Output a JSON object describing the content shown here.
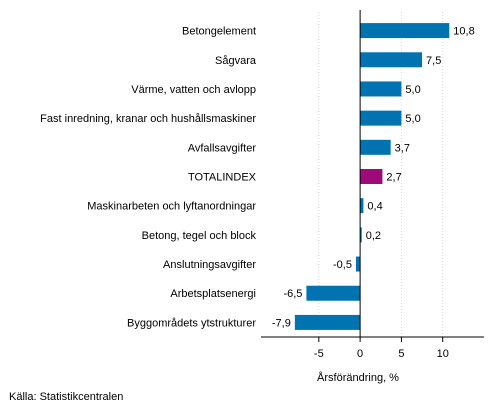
{
  "chart_data": {
    "type": "bar",
    "orientation": "horizontal",
    "categories": [
      "Betongelement",
      "Sågvara",
      "Värme, vatten och avlopp",
      "Fast inredning, kranar och hushållsmaskiner",
      "Avfallsavgifter",
      "TOTALINDEX",
      "Maskinarbeten och lyftanordningar",
      "Betong, tegel och block",
      "Anslutningsavgifter",
      "Arbetsplatsenergi",
      "Byggområdets ytstrukturer"
    ],
    "values": [
      10.8,
      7.5,
      5.0,
      5.0,
      3.7,
      2.7,
      0.4,
      0.2,
      -0.5,
      -6.5,
      -7.9
    ],
    "value_labels": [
      "10,8",
      "7,5",
      "5,0",
      "5,0",
      "3,7",
      "2,7",
      "0,4",
      "0,2",
      "-0,5",
      "-6,5",
      "-7,9"
    ],
    "highlight_category": "TOTALINDEX",
    "xlabel": "Årsförändring, %",
    "ylabel": "",
    "title": "",
    "xlim": [
      -12,
      15
    ],
    "xticks": [
      -5,
      0,
      5,
      10
    ],
    "xtick_labels": [
      "-5",
      "0",
      "5",
      "10"
    ],
    "grid": true,
    "colors": {
      "bar": "#0073b0",
      "highlight": "#9e0a7a",
      "grid": "#d9d9d9",
      "axis": "#000000"
    }
  },
  "source_text": "Källa: Statistikcentralen"
}
